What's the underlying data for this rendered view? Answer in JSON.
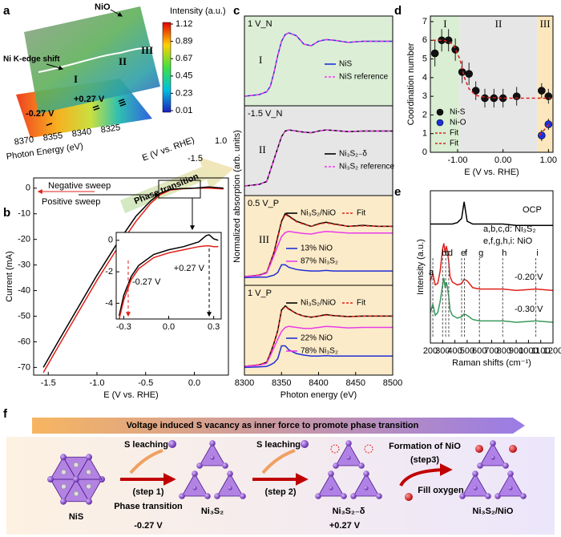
{
  "panel_labels": [
    "a",
    "b",
    "c",
    "d",
    "e",
    "f"
  ],
  "panel_a": {
    "top_label": "NiO",
    "colorbar_title": "Intensity (a.u.)",
    "colorbar_ticks": [
      1.12,
      0.89,
      0.67,
      0.45,
      0.23,
      0.01
    ],
    "edge_label": "Ni K-edge shift",
    "regions": [
      "I",
      "II",
      "III"
    ],
    "map_labels": [
      "+0.27 V",
      "-0.27 V"
    ],
    "map_regions": [
      "I",
      "II",
      "III"
    ],
    "energy_axis": {
      "label": "Photon Energy (eV)",
      "ticks": [
        8370,
        8355,
        8340,
        8325
      ]
    },
    "potential_axis": {
      "label": "E (V vs. RHE)",
      "ticks": [
        "1.0",
        "-1.5"
      ]
    },
    "arrow_label": "Phase transition"
  },
  "panel_c": {
    "ylabel": "Normalized absorption (arb. units)"
  },
  "chart_data": [
    {
      "type": "line",
      "xlabel": "E (V vs. RHE)",
      "ylabel": "Current (mA)",
      "xlim": [
        -1.65,
        0.35
      ],
      "ylim": [
        -73,
        4
      ],
      "xticks": [
        -1.5,
        {
          "value": -1,
          "label": "-1.0"
        },
        -0.5,
        {
          "value": 0,
          "label": "0.0"
        }
      ],
      "yticks": [
        0,
        -10,
        -20,
        -30,
        -40,
        -50,
        -60,
        -70
      ],
      "x": [
        -1.55,
        -1.4,
        -1.2,
        -1.0,
        -0.8,
        -0.6,
        -0.45,
        -0.35,
        -0.25,
        -0.15,
        0,
        0.15,
        0.3
      ],
      "series": [
        {
          "name": "Negative sweep",
          "color": "#e0201b",
          "values": [
            -72,
            -62,
            -49,
            -36,
            -24,
            -13,
            -6,
            -2.5,
            -0.8,
            -0.3,
            0,
            0,
            -0.3
          ]
        },
        {
          "name": "Positive sweep",
          "color": "#000000",
          "values": [
            -70,
            -60,
            -47,
            -34,
            -22,
            -11,
            -5,
            -2,
            -0.5,
            -0.2,
            0,
            0.5,
            0
          ]
        }
      ]
    },
    {
      "type": "line",
      "xlim": [
        -0.35,
        0.35
      ],
      "ylim": [
        -5,
        0.5
      ],
      "xticks": [
        -0.3,
        {
          "value": 0,
          "label": "0.0"
        },
        0.3
      ],
      "yticks": [
        0,
        -2,
        -4
      ],
      "x": [
        -0.33,
        -0.3,
        -0.25,
        -0.2,
        -0.1,
        0,
        0.1,
        0.2,
        0.25,
        0.27,
        0.3,
        0.33
      ],
      "series": [
        {
          "color": "#000000",
          "values": [
            -4.8,
            -3.5,
            -2.3,
            -1.6,
            -0.9,
            -0.6,
            -0.4,
            -0.1,
            0.3,
            0.35,
            0.1,
            0
          ]
        },
        {
          "color": "#e0201b",
          "values": [
            -5,
            -3.8,
            -2.5,
            -1.8,
            -1.1,
            -0.8,
            -0.6,
            -0.4,
            -0.35,
            -0.35,
            -0.4,
            -0.4
          ]
        }
      ],
      "markers": [
        {
          "x": 0.27,
          "label": "+0.27 V",
          "color": "#000000"
        },
        {
          "x": -0.27,
          "label": "-0.27 V",
          "color": "#e0201b"
        }
      ]
    },
    {
      "type": "line",
      "label": "1 V_N",
      "numeral": "I",
      "background": "#dcefd6",
      "xlim": [
        8300,
        8500
      ],
      "ylim": [
        -0.15,
        1.45
      ],
      "x": [
        8300,
        8320,
        8330,
        8335,
        8340,
        8345,
        8350,
        8355,
        8360,
        8370,
        8380,
        8390,
        8400,
        8410,
        8420,
        8440,
        8460,
        8480,
        8500
      ],
      "series": [
        {
          "name": "NiS",
          "color": "#1f2fd6",
          "values": [
            0.02,
            0.05,
            0.1,
            0.2,
            0.45,
            0.75,
            1.0,
            1.12,
            1.15,
            1.1,
            0.95,
            0.92,
            1.0,
            1.03,
            1.02,
            0.98,
            1.0,
            1.0,
            1.0
          ]
        },
        {
          "name": "NiS reference",
          "color": "#e83ce8",
          "dash": true,
          "values": [
            0.02,
            0.05,
            0.1,
            0.2,
            0.45,
            0.75,
            1.0,
            1.12,
            1.15,
            1.1,
            0.95,
            0.92,
            1.0,
            1.03,
            1.02,
            0.98,
            1.0,
            1.0,
            1.0
          ]
        }
      ]
    },
    {
      "type": "line",
      "label": "-1.5 V_N",
      "numeral": "II",
      "background": "#e6e6e6",
      "xlim": [
        8300,
        8500
      ],
      "ylim": [
        -0.15,
        1.45
      ],
      "x": [
        8300,
        8320,
        8330,
        8335,
        8340,
        8345,
        8350,
        8355,
        8360,
        8370,
        8380,
        8390,
        8400,
        8410,
        8420,
        8440,
        8460,
        8480,
        8500
      ],
      "series": [
        {
          "name": "Ni₃S₂₋δ",
          "color": "#000000",
          "values": [
            0.02,
            0.05,
            0.1,
            0.3,
            0.5,
            0.7,
            0.9,
            1.0,
            1.02,
            1.0,
            0.98,
            0.97,
            1.0,
            1.02,
            1.01,
            0.99,
            1.0,
            1.0,
            1.0
          ]
        },
        {
          "name": "Ni₃S₂ reference",
          "color": "#e83ce8",
          "dash": true,
          "values": [
            0.02,
            0.05,
            0.1,
            0.3,
            0.5,
            0.7,
            0.9,
            1.0,
            1.02,
            1.0,
            0.98,
            0.97,
            1.0,
            1.02,
            1.01,
            0.99,
            1.0,
            1.0,
            1.0
          ]
        }
      ]
    },
    {
      "type": "line",
      "label": "0.5 V_P",
      "numeral": "III",
      "background": "#fcebc9",
      "xlim": [
        8300,
        8500
      ],
      "ylim": [
        -0.15,
        1.6
      ],
      "x": [
        8300,
        8320,
        8330,
        8335,
        8340,
        8345,
        8350,
        8355,
        8360,
        8370,
        8380,
        8390,
        8400,
        8410,
        8420,
        8440,
        8460,
        8480,
        8500
      ],
      "series": [
        {
          "name": "Ni₃S₂/NiO",
          "color": "#000000",
          "values": [
            0.02,
            0.05,
            0.1,
            0.3,
            0.5,
            0.8,
            1.1,
            1.25,
            1.2,
            1.1,
            1.05,
            1.0,
            1.05,
            1.08,
            1.05,
            1.0,
            1.02,
            1.0,
            1.0
          ]
        },
        {
          "name": "Fit",
          "color": "#e0201b",
          "dash": true,
          "values": [
            0.02,
            0.05,
            0.1,
            0.29,
            0.49,
            0.78,
            1.08,
            1.23,
            1.19,
            1.09,
            1.04,
            1.0,
            1.04,
            1.07,
            1.04,
            1.0,
            1.01,
            1.0,
            1.0
          ]
        },
        {
          "name": "13% NiO",
          "color": "#1f2fd6",
          "values": [
            0,
            0.01,
            0.01,
            0.03,
            0.05,
            0.1,
            0.25,
            0.25,
            0.2,
            0.16,
            0.14,
            0.13,
            0.13,
            0.14,
            0.13,
            0.13,
            0.13,
            0.13,
            0.13
          ]
        },
        {
          "name": "87% Ni₃S₂",
          "color": "#e83ce8",
          "values": [
            0.02,
            0.04,
            0.09,
            0.26,
            0.44,
            0.62,
            0.8,
            0.88,
            0.9,
            0.88,
            0.86,
            0.85,
            0.88,
            0.9,
            0.89,
            0.87,
            0.87,
            0.87,
            0.87
          ]
        }
      ]
    },
    {
      "type": "line",
      "label": "1 V_P",
      "numeral": "",
      "background": "#fcebc9",
      "xlabel": "Photon energy (eV)",
      "xlim": [
        8300,
        8500
      ],
      "ylim": [
        -0.15,
        1.6
      ],
      "xticks": [
        8300,
        8350,
        8400,
        8450,
        8500
      ],
      "x": [
        8300,
        8320,
        8330,
        8335,
        8340,
        8345,
        8350,
        8355,
        8360,
        8370,
        8380,
        8390,
        8400,
        8410,
        8420,
        8440,
        8460,
        8480,
        8500
      ],
      "series": [
        {
          "name": "Ni₃S₂/NiO",
          "color": "#000000",
          "values": [
            0.02,
            0.05,
            0.1,
            0.28,
            0.48,
            0.72,
            1.12,
            1.2,
            1.14,
            1.05,
            1.0,
            0.98,
            1.0,
            1.03,
            1.01,
            0.99,
            1.0,
            1.0,
            1.0
          ]
        },
        {
          "name": "Fit",
          "color": "#e0201b",
          "dash": true,
          "values": [
            0.02,
            0.05,
            0.1,
            0.28,
            0.48,
            0.72,
            1.1,
            1.19,
            1.13,
            1.05,
            1.0,
            0.98,
            1.0,
            1.02,
            1.01,
            0.99,
            1.0,
            1.0,
            1.0
          ]
        },
        {
          "name": "22% NiO",
          "color": "#1f2fd6",
          "values": [
            0,
            0.01,
            0.02,
            0.05,
            0.09,
            0.17,
            0.42,
            0.42,
            0.34,
            0.27,
            0.24,
            0.22,
            0.22,
            0.23,
            0.22,
            0.22,
            0.22,
            0.22,
            0.22
          ]
        },
        {
          "name": "78% Ni₃S₂",
          "color": "#e83ce8",
          "values": [
            0.02,
            0.04,
            0.08,
            0.23,
            0.39,
            0.55,
            0.7,
            0.78,
            0.8,
            0.78,
            0.76,
            0.76,
            0.78,
            0.8,
            0.79,
            0.77,
            0.78,
            0.78,
            0.78
          ]
        }
      ]
    },
    {
      "type": "scatter",
      "xlabel": "E (V vs. RHE)",
      "ylabel": "Coordination number",
      "xlim": [
        -1.6,
        1.1
      ],
      "ylim": [
        0,
        7.3
      ],
      "xticks": [
        {
          "value": -1,
          "label": "-1.00"
        },
        {
          "value": 0,
          "label": "0.00"
        },
        {
          "value": 1,
          "label": "1.00"
        }
      ],
      "yticks": [
        0,
        1,
        2,
        3,
        4,
        5,
        6,
        7
      ],
      "regions": [
        {
          "label": "I",
          "range": [
            -1.6,
            -0.95
          ],
          "color": "#d9eed2"
        },
        {
          "label": "II",
          "range": [
            -0.95,
            0.75
          ],
          "color": "#e6e6e6"
        },
        {
          "label": "III",
          "range": [
            0.75,
            1.1
          ],
          "color": "#fbe6bd"
        }
      ],
      "series": [
        {
          "name": "Ni-S",
          "color": "#111111",
          "x": [
            -1.5,
            -1.35,
            -1.2,
            -1.05,
            -0.9,
            -0.75,
            -0.6,
            -0.4,
            -0.2,
            0.0,
            0.3,
            0.85,
            1.0
          ],
          "values": [
            5.3,
            6.0,
            6.0,
            5.5,
            4.3,
            4.2,
            3.3,
            2.9,
            2.9,
            2.9,
            3.0,
            3.3,
            3.0
          ],
          "errors": [
            0.7,
            0.6,
            0.6,
            0.6,
            0.6,
            0.6,
            0.5,
            0.5,
            0.5,
            0.5,
            0.5,
            0.4,
            0.4
          ]
        },
        {
          "name": "Ni-O",
          "color": "#1c2fe0",
          "x": [
            0.85,
            1.0
          ],
          "values": [
            0.9,
            1.5
          ],
          "errors": [
            0.3,
            0.3
          ]
        },
        {
          "name": "Fit",
          "color": "#e0201b",
          "dash": true,
          "x": [
            -1.55,
            -1.3,
            -1.1,
            -0.95,
            -0.85,
            -0.75,
            -0.6,
            -0.4,
            0,
            0.5,
            1.05
          ],
          "values": [
            6.0,
            6.0,
            5.8,
            5.0,
            4.0,
            3.4,
            3.05,
            2.95,
            2.9,
            2.9,
            2.9
          ]
        },
        {
          "name": "Fit",
          "color": "#e0201b",
          "dash": true,
          "x": [
            0.8,
            1.05
          ],
          "values": [
            0.9,
            1.6
          ]
        }
      ]
    },
    {
      "type": "line",
      "xlabel": "Raman shifts (cm⁻¹)",
      "ylabel": "Intensity (a.u.)",
      "xlim": [
        200,
        1200
      ],
      "ylim": [
        0,
        11
      ],
      "xticks": [
        200,
        300,
        400,
        500,
        600,
        700,
        800,
        900,
        1000,
        1100,
        1200
      ],
      "x": [
        200,
        220,
        240,
        260,
        280,
        300,
        310,
        320,
        330,
        340,
        350,
        360,
        380,
        420,
        455,
        475,
        500,
        545,
        600,
        700,
        790,
        900,
        1060,
        1200
      ],
      "series": [
        {
          "name": "OCP",
          "color": "#000000",
          "values": [
            8.6,
            8.6,
            8.6,
            8.6,
            8.6,
            8.6,
            8.6,
            8.6,
            8.6,
            8.6,
            8.6,
            8.6,
            8.6,
            8.7,
            9.0,
            10.2,
            8.8,
            8.6,
            8.6,
            8.6,
            8.6,
            8.5,
            8.5,
            8.5
          ]
        },
        {
          "name": "-0.20 V",
          "color": "#e0201b",
          "values": [
            4.5,
            5.0,
            4.2,
            4.3,
            5.2,
            6.8,
            7.2,
            6.5,
            7.0,
            6.6,
            5.8,
            4.8,
            4.4,
            4.2,
            4.3,
            4.6,
            4.5,
            4.0,
            3.9,
            3.9,
            3.9,
            3.8,
            3.9,
            3.8
          ]
        },
        {
          "name": "-0.30 V",
          "color": "#3a9a5c",
          "values": [
            2.2,
            2.8,
            2.0,
            2.2,
            3.0,
            4.2,
            4.7,
            4.0,
            4.4,
            4.0,
            3.3,
            2.4,
            2.0,
            1.8,
            1.9,
            2.1,
            2.0,
            1.7,
            1.6,
            1.6,
            1.6,
            1.5,
            1.6,
            1.5
          ]
        }
      ],
      "annotations": [
        "a,b,c,d: Ni₃S₂",
        "e,f,g,h,i: NiO"
      ],
      "peaks": [
        {
          "label": "a",
          "x": 220
        },
        {
          "label": "b",
          "x": 300
        },
        {
          "label": "c",
          "x": 325
        },
        {
          "label": "d",
          "x": 350
        },
        {
          "label": "e",
          "x": 455
        },
        {
          "label": "f",
          "x": 478
        },
        {
          "label": "g",
          "x": 600
        },
        {
          "label": "h",
          "x": 790
        },
        {
          "label": "i",
          "x": 1060
        }
      ]
    }
  ],
  "panel_f": {
    "banner": "Voltage induced S vacancy as inner force to promote phase transition",
    "structures": [
      "NiS",
      "Ni₃S₂",
      "Ni₃S₂₋δ",
      "Ni₃S₂/NiO"
    ],
    "steps": [
      {
        "top": "S leaching",
        "label": "(step 1)",
        "bottom": "Phase transition"
      },
      {
        "top": "S leaching",
        "label": "(step 2)"
      },
      {
        "top": "Formation of NiO",
        "label": "(step3)",
        "bottom": "Fill oxygen"
      }
    ],
    "potentials": [
      "-0.27 V",
      "+0.27 V"
    ]
  }
}
